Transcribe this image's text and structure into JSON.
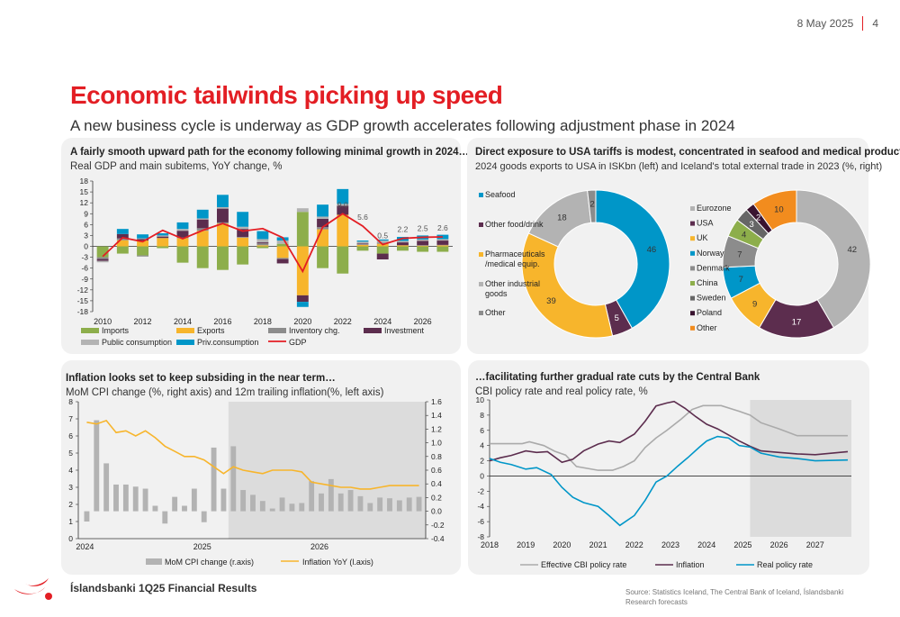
{
  "header": {
    "date": "8 May 2025",
    "page": "4"
  },
  "title": "Economic tailwinds picking up speed",
  "subtitle": "A new business cycle is underway as GDP growth accelerates following adjustment phase in 2024",
  "footer": {
    "brand": "Íslandsbanki 1Q25 Financial Results",
    "source": "Source: Statistics Iceland, The Central Bank of Iceland, Íslandsbanki Research forecasts"
  },
  "panels": {
    "gdp": {
      "title": "A fairly smooth upward path for the economy following minimal growth in 2024…",
      "subtitle": "Real GDP and main subitems, YoY change, %"
    },
    "tariffs": {
      "title": "Direct exposure to USA tariffs is modest, concentrated in seafood and medical products",
      "subtitle": "2024 goods exports to USA in ISKbn (left) and Iceland's total external trade in 2023 (%, right)"
    },
    "inflation": {
      "title_bold": "Inflation",
      "title_rest": " looks set to keep subsiding in the near term…",
      "subtitle": "MoM CPI change (%, right axis) and 12m trailing inflation(%, left axis)"
    },
    "rates": {
      "title": "…facilitating further gradual rate cuts by the Central Bank",
      "subtitle": "CBI policy rate and real policy rate, %"
    }
  },
  "chart_data": [
    {
      "type": "bar",
      "id": "gdp",
      "stacked": true,
      "categories": [
        "2010",
        "2011",
        "2012",
        "2013",
        "2014",
        "2015",
        "2016",
        "2017",
        "2018",
        "2019",
        "2020",
        "2021",
        "2022",
        "2023",
        "2024",
        "2025",
        "2026",
        "2027"
      ],
      "x_tick_labels": [
        "2010",
        "2012",
        "2014",
        "2016",
        "2018",
        "2020",
        "2022",
        "2024",
        "2026"
      ],
      "ylim": [
        -18,
        18
      ],
      "yticks": [
        18,
        15,
        12,
        9,
        6,
        3,
        0,
        -3,
        -6,
        -9,
        -12,
        -15,
        -18
      ],
      "series": [
        {
          "name": "Imports",
          "color": "#8dae4b",
          "values": [
            -3,
            -2,
            -2.5,
            -0.5,
            -4.5,
            -6,
            -6.5,
            -5,
            -0.5,
            0.7,
            9.5,
            -6,
            -7.5,
            -1.2,
            -2,
            -1.2,
            -1.5,
            -1.5
          ]
        },
        {
          "name": "Exports",
          "color": "#f7b52c",
          "values": [
            0,
            1.7,
            1.6,
            2.3,
            2.3,
            4.3,
            6.3,
            2.4,
            0.3,
            -3.2,
            -13.5,
            4.7,
            8.7,
            0.4,
            0.7,
            0.3,
            0.2,
            0.3
          ]
        },
        {
          "name": "Inventory chg.",
          "color": "#8c8c8c",
          "values": [
            -0.5,
            0.5,
            -0.3,
            0,
            0.1,
            0.7,
            0.3,
            0.2,
            0.5,
            -0.3,
            0,
            0.6,
            0,
            0.2,
            0.3,
            0,
            0.1,
            0.1
          ]
        },
        {
          "name": "Investment",
          "color": "#5c2d4e",
          "values": [
            -0.5,
            1.2,
            0.4,
            0.4,
            1.9,
            2.4,
            3.8,
            2.2,
            0.3,
            -1.2,
            -1.8,
            2.3,
            2.5,
            0.2,
            -1.6,
            0.8,
            1.2,
            1.2
          ]
        },
        {
          "name": "Public consumption",
          "color": "#b3b3b3",
          "values": [
            -0.4,
            0,
            0.2,
            0.3,
            0.5,
            0.3,
            0.4,
            0.6,
            0.9,
            0.9,
            1,
            0.6,
            0.5,
            0.5,
            0.6,
            0.4,
            0.4,
            0.4
          ]
        },
        {
          "name": "Priv.consumption",
          "color": "#0096c8",
          "values": [
            0,
            1.4,
            1.1,
            0.6,
            1.8,
            2.4,
            3.4,
            4.1,
            2.2,
            0.9,
            -1.4,
            3.3,
            4.1,
            0.3,
            0.3,
            1.1,
            1.1,
            1.2
          ]
        }
      ],
      "gdp_line": {
        "name": "GDP",
        "color": "#e31e24",
        "values": [
          -2.8,
          2.4,
          1.3,
          4.4,
          2.1,
          4.4,
          6.3,
          4.2,
          4.9,
          2.4,
          -6.9,
          5.3,
          9.0,
          5.6,
          0.5,
          2.2,
          2.5,
          2.6
        ]
      },
      "data_labels": [
        {
          "label": "9.0",
          "index": 12
        },
        {
          "label": "5.6",
          "index": 13
        },
        {
          "label": "0.5",
          "index": 14
        },
        {
          "label": "2.2",
          "index": 15
        },
        {
          "label": "2.5",
          "index": 16
        },
        {
          "label": "2.6",
          "index": 17
        }
      ]
    },
    {
      "type": "pie",
      "id": "exports_usa",
      "donut": true,
      "slices": [
        {
          "label": "Seafood",
          "value": 46,
          "color": "#0096c8"
        },
        {
          "label": "Other food/drink",
          "value": 5,
          "color": "#5c2d4e"
        },
        {
          "label": "Pharmaceuticals /medical equip.",
          "value": 39,
          "color": "#f7b52c"
        },
        {
          "label": "Other industrial goods",
          "value": 18,
          "color": "#b3b3b3"
        },
        {
          "label": "Other",
          "value": 2,
          "color": "#8c8c8c"
        }
      ]
    },
    {
      "type": "pie",
      "id": "external_trade",
      "donut": true,
      "slices": [
        {
          "label": "Eurozone",
          "value": 42,
          "color": "#b3b3b3"
        },
        {
          "label": "USA",
          "value": 17,
          "color": "#5c2d4e"
        },
        {
          "label": "UK",
          "value": 9,
          "color": "#f7b52c"
        },
        {
          "label": "Norway",
          "value": 7,
          "color": "#0096c8"
        },
        {
          "label": "Denmark",
          "value": 7,
          "color": "#8c8c8c"
        },
        {
          "label": "China",
          "value": 4,
          "color": "#8dae4b"
        },
        {
          "label": "Sweden",
          "value": 3,
          "color": "#666666"
        },
        {
          "label": "Poland",
          "value": 2,
          "color": "#3a1430"
        },
        {
          "label": "Other",
          "value": 10,
          "color": "#f28c1e"
        }
      ]
    },
    {
      "type": "bar",
      "id": "inflation",
      "combo": "bar + line, dual axis",
      "x_tick_labels": [
        "2024",
        "2025",
        "2026"
      ],
      "ylim_left": [
        0,
        8
      ],
      "yticks_left": [
        0,
        1,
        2,
        3,
        4,
        5,
        6,
        7,
        8
      ],
      "ylim_right": [
        -0.4,
        1.6
      ],
      "yticks_right": [
        "1.6",
        "1.4",
        "1.2",
        "1.0",
        "0.8",
        "0.6",
        "0.4",
        "0.2",
        "0.0",
        "-0.2",
        "-0.4"
      ],
      "forecast_shaded": true,
      "series": [
        {
          "name": "MoM CPI change (r.axis)",
          "axis": "right",
          "color": "#b3b3b3",
          "values": [
            -0.15,
            1.33,
            0.7,
            0.39,
            0.39,
            0.36,
            0.33,
            0.08,
            -0.18,
            0.21,
            0.08,
            0.33,
            -0.16,
            0.93,
            0.33,
            0.95,
            0.31,
            0.24,
            0.15,
            0.04,
            0.2,
            0.11,
            0.12,
            0.44,
            0.26,
            0.47,
            0.26,
            0.31,
            0.22,
            0.12,
            0.2,
            0.19,
            0.16,
            0.2,
            0.21
          ]
        },
        {
          "name": "Inflation YoY (l.axis)",
          "axis": "left",
          "color": "#f7b52c",
          "values": [
            6.8,
            6.7,
            6.9,
            6.2,
            6.3,
            6.0,
            6.3,
            5.9,
            5.4,
            5.1,
            4.8,
            4.8,
            4.6,
            4.2,
            3.8,
            4.2,
            4.0,
            3.9,
            3.8,
            4.0,
            4.0,
            4.0,
            3.9,
            3.3,
            3.2,
            3.1,
            3.0,
            3.0,
            2.9,
            2.9,
            3.0,
            3.1,
            3.1,
            3.1,
            3.1
          ]
        }
      ]
    },
    {
      "type": "line",
      "id": "rates",
      "x_tick_labels": [
        "2018",
        "2019",
        "2020",
        "2021",
        "2022",
        "2023",
        "2024",
        "2025",
        "2026",
        "2027"
      ],
      "ylim": [
        -8,
        10
      ],
      "yticks": [
        10,
        8,
        6,
        4,
        2,
        0,
        -2,
        -4,
        -6,
        -8
      ],
      "forecast_shaded": true,
      "series": [
        {
          "name": "Effective CBI policy rate",
          "color": "#aaaaaa",
          "x": [
            2018,
            2018.9,
            2019.1,
            2019.5,
            2019.8,
            2020.1,
            2020.4,
            2021.0,
            2021.4,
            2021.7,
            2022.0,
            2022.3,
            2022.6,
            2022.9,
            2023.3,
            2023.6,
            2023.9,
            2024.4,
            2024.9,
            2025.2,
            2025.5,
            2026.0,
            2026.5,
            2027.0,
            2027.9
          ],
          "y": [
            4.25,
            4.25,
            4.5,
            4.0,
            3.25,
            2.75,
            1.25,
            0.75,
            0.75,
            1.25,
            2.0,
            3.75,
            5.0,
            6.0,
            7.5,
            8.75,
            9.25,
            9.25,
            8.5,
            8.0,
            7.0,
            6.2,
            5.3,
            5.3,
            5.3
          ]
        },
        {
          "name": "Inflation",
          "color": "#5c2d4e",
          "x": [
            2018,
            2018.3,
            2018.6,
            2019.0,
            2019.3,
            2019.6,
            2020.0,
            2020.3,
            2020.6,
            2021.0,
            2021.3,
            2021.6,
            2022.0,
            2022.3,
            2022.6,
            2022.9,
            2023.1,
            2023.4,
            2023.7,
            2024.0,
            2024.3,
            2024.6,
            2024.9,
            2025.2,
            2025.5,
            2026.0,
            2026.5,
            2027.0,
            2027.9
          ],
          "y": [
            2.0,
            2.4,
            2.7,
            3.3,
            3.1,
            3.2,
            1.8,
            2.2,
            3.3,
            4.2,
            4.6,
            4.4,
            5.5,
            7.2,
            9.2,
            9.6,
            9.8,
            8.9,
            7.8,
            6.8,
            6.2,
            5.4,
            4.6,
            3.9,
            3.3,
            3.1,
            2.9,
            2.8,
            3.2
          ]
        },
        {
          "name": "Real policy rate",
          "color": "#0096c8",
          "x": [
            2018,
            2018.3,
            2018.6,
            2019.0,
            2019.3,
            2019.7,
            2020.0,
            2020.3,
            2020.6,
            2021.0,
            2021.3,
            2021.6,
            2022.0,
            2022.3,
            2022.6,
            2022.9,
            2023.2,
            2023.5,
            2023.8,
            2024.0,
            2024.3,
            2024.6,
            2024.9,
            2025.2,
            2025.5,
            2026.0,
            2026.5,
            2027.0,
            2027.9
          ],
          "y": [
            2.3,
            1.8,
            1.5,
            0.9,
            1.1,
            0.2,
            -1.5,
            -2.8,
            -3.5,
            -4.0,
            -5.2,
            -6.5,
            -5.2,
            -3.2,
            -0.8,
            0.0,
            1.3,
            2.5,
            3.8,
            4.6,
            5.2,
            5.0,
            4.0,
            3.8,
            3.0,
            2.5,
            2.3,
            2.0,
            2.1
          ]
        }
      ]
    }
  ]
}
